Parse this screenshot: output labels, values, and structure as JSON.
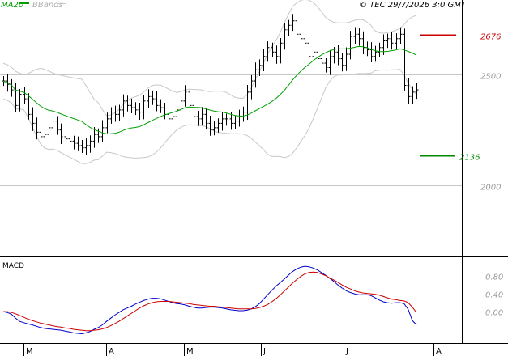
{
  "header": {
    "legend_ma": "MA20",
    "legend_bb": "BBands",
    "timestamp": "© TEC 29/7/2026 3:0 GMT"
  },
  "colors": {
    "ma": "#00a000",
    "bands": "#c8c8c8",
    "bars": "#000000",
    "resistance": "#cc0000",
    "support": "#008800",
    "macd": "#0000cc",
    "signal": "#cc0000",
    "grid": "#c8c8c8"
  },
  "chart_data": [
    {
      "type": "ohlc",
      "title": "",
      "y_axis_labels": [
        "2500",
        "2000"
      ],
      "y_ticks": [
        2500,
        2000
      ],
      "ylim": [
        1700,
        2790
      ],
      "x_month_labels": [
        "M",
        "A",
        "M",
        "J",
        "J",
        "A"
      ],
      "resistance": {
        "value": 2676,
        "label": "2676"
      },
      "support": {
        "value": 2136,
        "label": "2136"
      },
      "grid": true,
      "close": [
        2470,
        2455,
        2430,
        2360,
        2410,
        2390,
        2320,
        2280,
        2240,
        2220,
        2230,
        2260,
        2290,
        2250,
        2220,
        2210,
        2200,
        2190,
        2180,
        2170,
        2180,
        2200,
        2230,
        2220,
        2260,
        2300,
        2330,
        2320,
        2340,
        2380,
        2360,
        2350,
        2340,
        2330,
        2380,
        2400,
        2390,
        2360,
        2350,
        2320,
        2300,
        2310,
        2340,
        2380,
        2420,
        2360,
        2310,
        2300,
        2320,
        2280,
        2250,
        2260,
        2280,
        2300,
        2300,
        2280,
        2290,
        2310,
        2330,
        2420,
        2470,
        2520,
        2540,
        2580,
        2620,
        2600,
        2580,
        2640,
        2700,
        2720,
        2740,
        2680,
        2660,
        2640,
        2580,
        2600,
        2570,
        2550,
        2530,
        2580,
        2600,
        2570,
        2540,
        2590,
        2670,
        2680,
        2660,
        2620,
        2610,
        2580,
        2600,
        2620,
        2650,
        2660,
        2640,
        2660,
        2680,
        2450,
        2400,
        2420,
        2430
      ]
    },
    {
      "type": "line",
      "title": "MACD",
      "y_axis_labels": [
        "0.80",
        "0.40",
        "0.00"
      ],
      "y_ticks": [
        0.8,
        0.4,
        0.0
      ],
      "ylim": [
        -0.6,
        1.15
      ],
      "series": [
        {
          "name": "",
          "values": [
            0.0,
            -0.02,
            -0.06,
            -0.15,
            -0.22,
            -0.25,
            -0.28,
            -0.3,
            -0.33,
            -0.36,
            -0.38,
            -0.39,
            -0.4,
            -0.41,
            -0.42,
            -0.44,
            -0.46,
            -0.48,
            -0.49,
            -0.5,
            -0.48,
            -0.45,
            -0.4,
            -0.36,
            -0.3,
            -0.22,
            -0.15,
            -0.08,
            -0.02,
            0.04,
            0.08,
            0.12,
            0.17,
            0.21,
            0.25,
            0.28,
            0.3,
            0.3,
            0.29,
            0.26,
            0.23,
            0.2,
            0.18,
            0.17,
            0.15,
            0.12,
            0.1,
            0.08,
            0.08,
            0.09,
            0.1,
            0.1,
            0.09,
            0.08,
            0.06,
            0.04,
            0.03,
            0.02,
            0.02,
            0.03,
            0.06,
            0.11,
            0.18,
            0.28,
            0.38,
            0.48,
            0.57,
            0.65,
            0.73,
            0.82,
            0.9,
            0.96,
            1.0,
            1.02,
            1.01,
            0.98,
            0.94,
            0.88,
            0.82,
            0.75,
            0.68,
            0.6,
            0.53,
            0.47,
            0.43,
            0.4,
            0.38,
            0.38,
            0.38,
            0.36,
            0.31,
            0.26,
            0.22,
            0.2,
            0.19,
            0.2,
            0.2,
            0.18,
            0.05,
            -0.2,
            -0.3
          ]
        },
        {
          "name": "",
          "values": [
            0.0,
            0.0,
            -0.02,
            -0.05,
            -0.09,
            -0.13,
            -0.17,
            -0.2,
            -0.23,
            -0.26,
            -0.28,
            -0.3,
            -0.32,
            -0.34,
            -0.35,
            -0.37,
            -0.38,
            -0.4,
            -0.41,
            -0.42,
            -0.43,
            -0.43,
            -0.42,
            -0.41,
            -0.39,
            -0.36,
            -0.32,
            -0.27,
            -0.22,
            -0.16,
            -0.1,
            -0.04,
            0.02,
            0.08,
            0.13,
            0.17,
            0.2,
            0.22,
            0.23,
            0.23,
            0.23,
            0.22,
            0.21,
            0.2,
            0.19,
            0.18,
            0.16,
            0.15,
            0.14,
            0.13,
            0.12,
            0.12,
            0.11,
            0.1,
            0.09,
            0.08,
            0.07,
            0.06,
            0.06,
            0.06,
            0.06,
            0.07,
            0.09,
            0.12,
            0.16,
            0.22,
            0.29,
            0.37,
            0.46,
            0.55,
            0.64,
            0.72,
            0.79,
            0.85,
            0.88,
            0.89,
            0.88,
            0.85,
            0.81,
            0.76,
            0.71,
            0.66,
            0.6,
            0.55,
            0.51,
            0.47,
            0.44,
            0.42,
            0.41,
            0.4,
            0.39,
            0.37,
            0.34,
            0.31,
            0.28,
            0.27,
            0.25,
            0.24,
            0.2,
            0.1,
            -0.02
          ]
        }
      ]
    }
  ]
}
